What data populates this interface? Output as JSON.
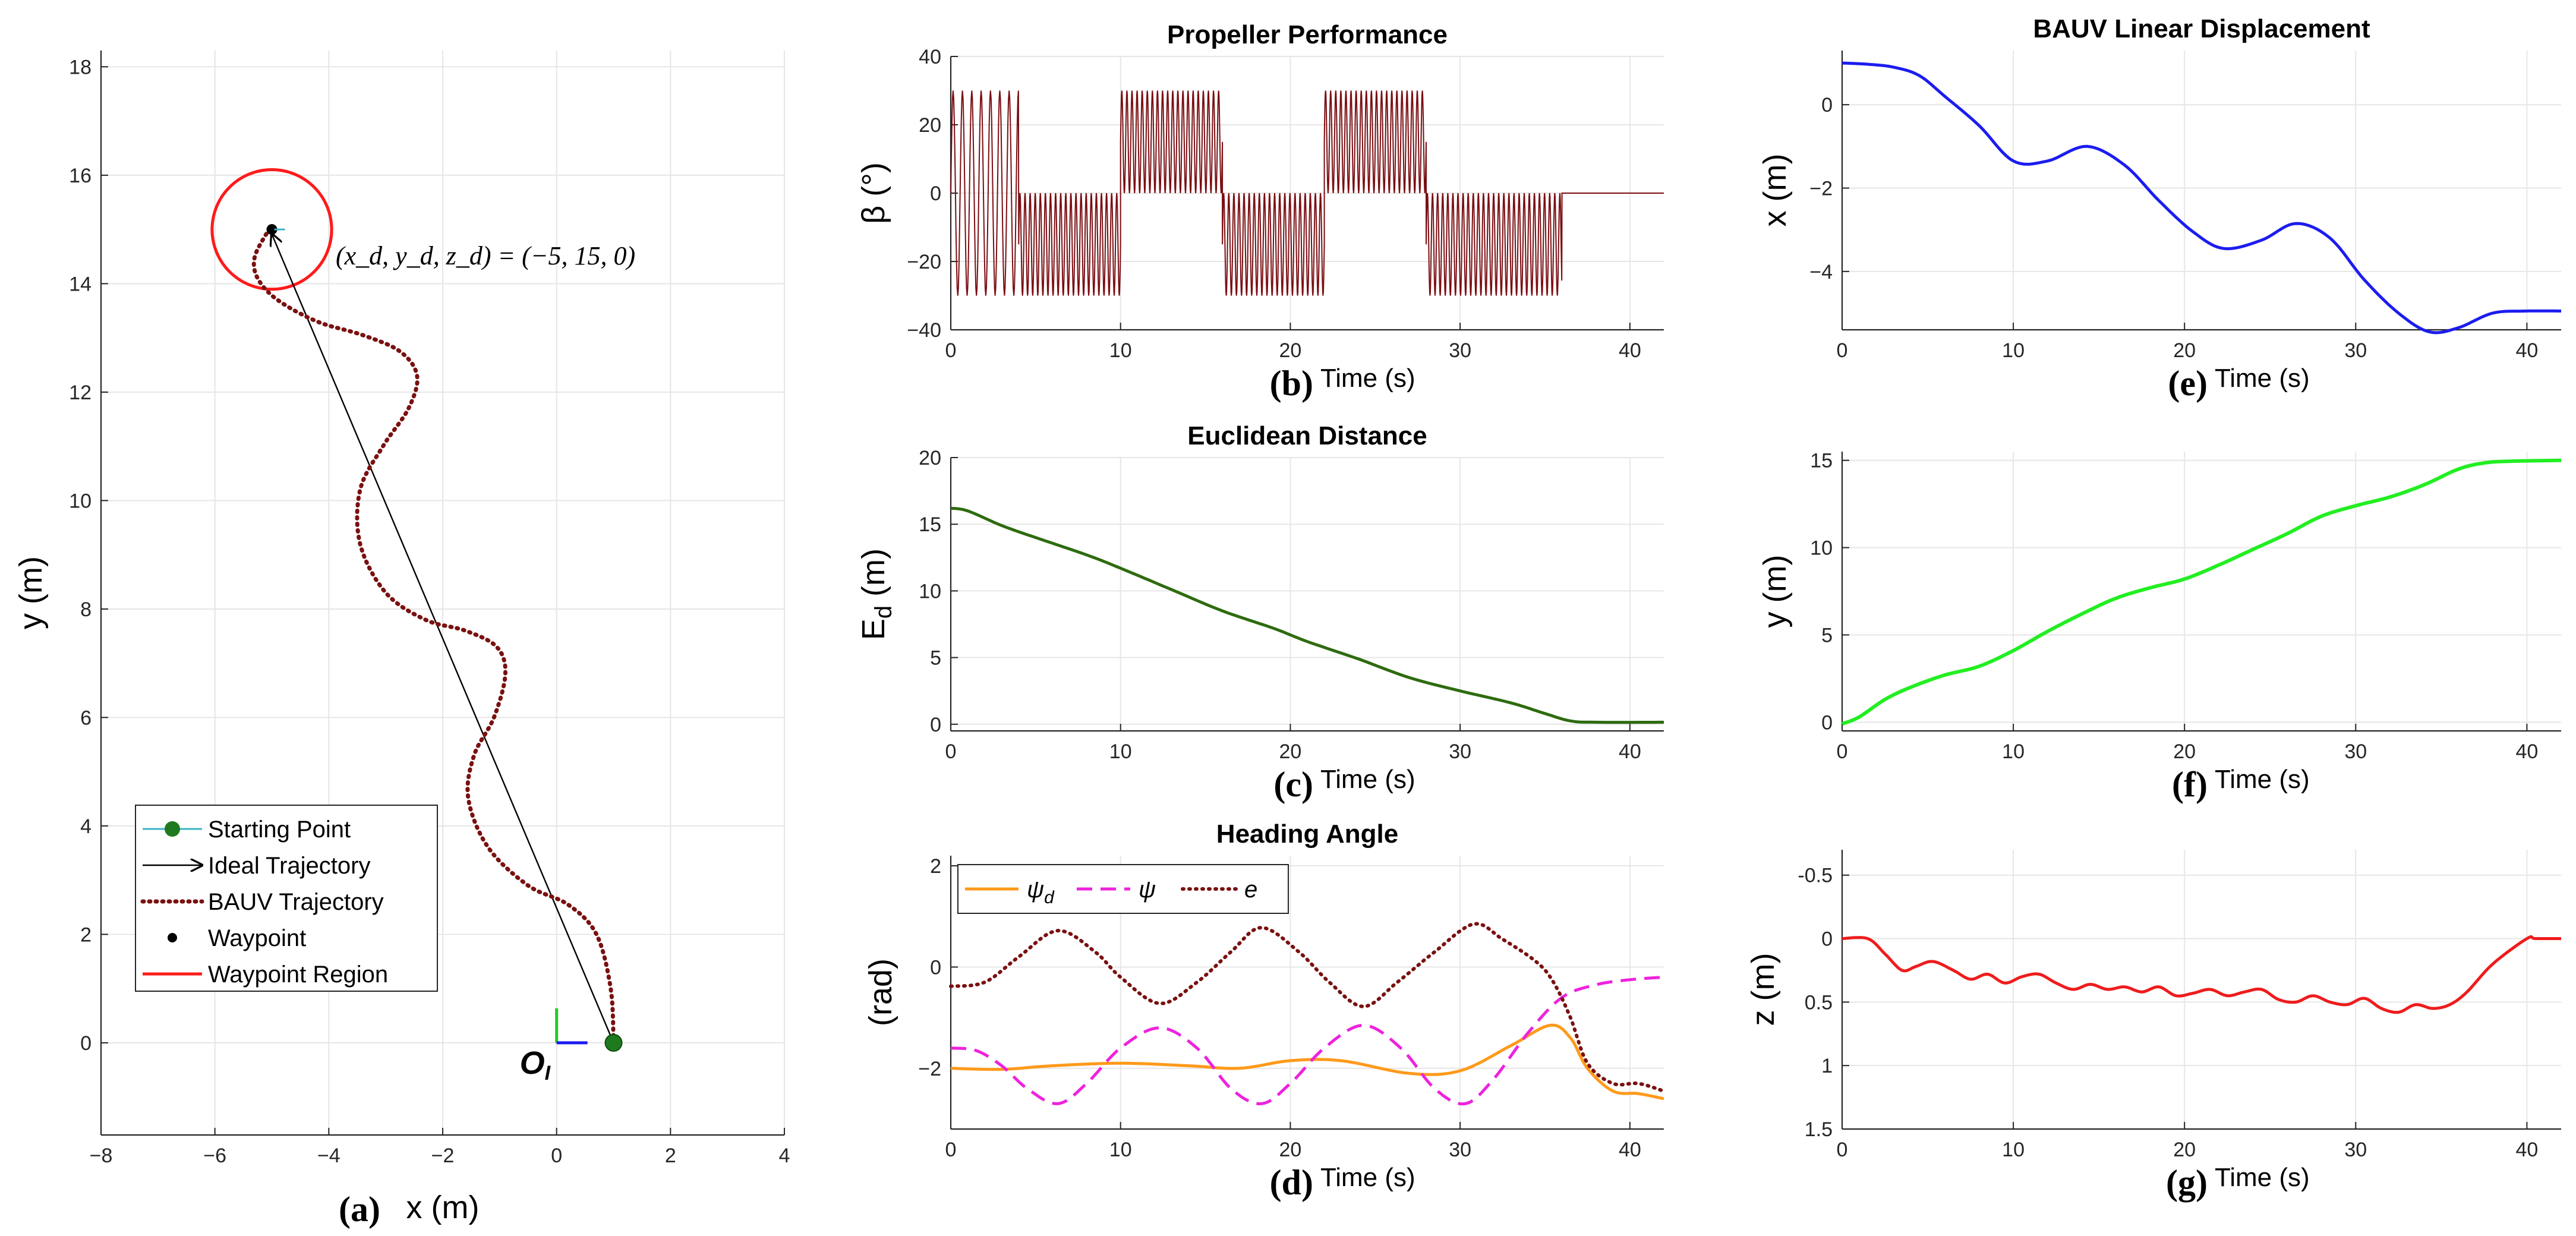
{
  "chart_data": [
    {
      "id": "a",
      "type": "line",
      "panel_label": "(a)",
      "title": "",
      "xlabel": "x (m)",
      "ylabel": "y (m)",
      "xlim": [
        -8,
        4
      ],
      "ylim": [
        -1.7,
        18.3
      ],
      "xticks": [
        -8,
        -6,
        -4,
        -2,
        0,
        2,
        4
      ],
      "yticks": [
        0,
        2,
        4,
        6,
        8,
        10,
        12,
        14,
        16,
        18
      ],
      "grid": true,
      "starting_point": [
        1,
        0
      ],
      "waypoint": [
        -5,
        15
      ],
      "waypoint_region_radius": 1.05,
      "annotation": "(x_d, y_d, z_d) = (−5, 15, 0)",
      "origin_label": "O_I",
      "ideal_trajectory": {
        "x": [
          1,
          -5
        ],
        "y": [
          0,
          15
        ]
      },
      "bauv_trajectory": {
        "x": [
          1.0,
          0.95,
          0.7,
          0.2,
          -0.5,
          -1.2,
          -1.55,
          -1.45,
          -1.1,
          -0.9,
          -1.05,
          -1.6,
          -2.3,
          -3.0,
          -3.45,
          -3.45,
          -3.05,
          -2.6,
          -2.45,
          -2.75,
          -3.4,
          -4.2,
          -4.9,
          -5.25,
          -5.3,
          -5.05
        ],
        "y": [
          0.0,
          1.0,
          2.0,
          2.55,
          2.9,
          3.6,
          4.5,
          5.3,
          6.0,
          6.8,
          7.3,
          7.6,
          7.8,
          8.3,
          9.2,
          10.2,
          11.0,
          11.7,
          12.3,
          12.75,
          13.05,
          13.3,
          13.7,
          14.1,
          14.5,
          15.0
        ]
      },
      "legend": {
        "position": "lower-left",
        "entries": [
          "Starting Point",
          "Ideal Trajectory",
          "BAUV Trajectory",
          "Waypoint",
          "Waypoint Region"
        ]
      }
    },
    {
      "id": "b",
      "type": "line",
      "panel_label": "(b)",
      "title": "Propeller Performance",
      "xlabel": "Time (s)",
      "ylabel": "β (°)",
      "xlim": [
        0,
        42
      ],
      "ylim": [
        -40,
        40
      ],
      "xticks": [
        0,
        10,
        20,
        30,
        40
      ],
      "yticks": [
        -40,
        -20,
        0,
        20,
        40
      ],
      "grid": true,
      "series": [
        {
          "name": "β",
          "description": "fast oscillation with amplitude 30° between centre offsets",
          "segments": [
            {
              "t0": 0,
              "t1": 4,
              "center": 0,
              "amplitude": 30,
              "period": 0.55
            },
            {
              "t0": 4,
              "t1": 10,
              "center": -15,
              "amplitude": 15,
              "period": 0.3
            },
            {
              "t0": 10,
              "t1": 16,
              "center": 15,
              "amplitude": 15,
              "period": 0.3
            },
            {
              "t0": 16,
              "t1": 22,
              "center": -15,
              "amplitude": 15,
              "period": 0.3
            },
            {
              "t0": 22,
              "t1": 28,
              "center": 15,
              "amplitude": 15,
              "period": 0.3
            },
            {
              "t0": 28,
              "t1": 36,
              "center": -15,
              "amplitude": 15,
              "period": 0.3
            },
            {
              "t0": 36,
              "t1": 42,
              "center": 0,
              "amplitude": 0,
              "period": 1
            }
          ]
        }
      ]
    },
    {
      "id": "c",
      "type": "line",
      "panel_label": "(c)",
      "title": "Euclidean Distance",
      "xlabel": "Time (s)",
      "ylabel": "E_d (m)",
      "xlim": [
        0,
        42
      ],
      "ylim": [
        -0.5,
        20
      ],
      "xticks": [
        0,
        10,
        20,
        30,
        40
      ],
      "yticks": [
        0,
        5,
        10,
        15,
        20
      ],
      "grid": true,
      "series": [
        {
          "name": "E_d",
          "t": [
            0,
            1,
            3,
            5,
            8,
            10,
            13,
            16,
            19,
            21,
            24,
            27,
            30,
            33,
            35,
            36.5,
            38,
            42
          ],
          "values": [
            16.2,
            16.0,
            14.9,
            14.0,
            12.7,
            11.7,
            10.1,
            8.5,
            7.2,
            6.2,
            4.9,
            3.5,
            2.5,
            1.6,
            0.8,
            0.25,
            0.15,
            0.15
          ]
        }
      ]
    },
    {
      "id": "d",
      "type": "line",
      "panel_label": "(d)",
      "title": "Heading Angle",
      "xlabel": "Time (s)",
      "ylabel": "(rad)",
      "xlim": [
        0,
        42
      ],
      "ylim": [
        -3.2,
        2.2
      ],
      "xticks": [
        0,
        10,
        20,
        30,
        40
      ],
      "yticks": [
        -2,
        0,
        2
      ],
      "grid": true,
      "legend": {
        "position": "top-left",
        "entries": [
          "ψ_d",
          "ψ",
          "e"
        ]
      },
      "series": [
        {
          "name": "ψ_d",
          "t": [
            0,
            3,
            6,
            10,
            14,
            17,
            20,
            23,
            27,
            30,
            33,
            35.3,
            36.5,
            37.5,
            39,
            40.5,
            42
          ],
          "values": [
            -2.0,
            -2.02,
            -1.95,
            -1.9,
            -1.95,
            -2.0,
            -1.85,
            -1.85,
            -2.1,
            -2.05,
            -1.55,
            -1.15,
            -1.4,
            -2.0,
            -2.45,
            -2.5,
            -2.6
          ]
        },
        {
          "name": "ψ",
          "t": [
            0,
            1.5,
            3,
            4.5,
            6.3,
            8,
            10,
            12.3,
            14.5,
            16.5,
            18.3,
            20,
            22,
            24.3,
            26.5,
            28.5,
            30.3,
            32,
            34,
            36,
            38,
            40,
            42
          ],
          "values": [
            -1.6,
            -1.65,
            -1.95,
            -2.4,
            -2.7,
            -2.3,
            -1.6,
            -1.2,
            -1.6,
            -2.4,
            -2.7,
            -2.3,
            -1.6,
            -1.15,
            -1.6,
            -2.4,
            -2.7,
            -2.2,
            -1.3,
            -0.6,
            -0.35,
            -0.25,
            -0.2
          ]
        },
        {
          "name": "e",
          "t": [
            0,
            2,
            4,
            6.3,
            8.5,
            10,
            12.3,
            14.5,
            16.5,
            18.3,
            20.5,
            22.3,
            24.3,
            26.3,
            28.5,
            30.8,
            32.5,
            34.5,
            35.5,
            36.5,
            37.5,
            39,
            40.5,
            42
          ],
          "values": [
            -0.38,
            -0.3,
            0.2,
            0.72,
            0.3,
            -0.2,
            -0.72,
            -0.3,
            0.3,
            0.78,
            0.3,
            -0.3,
            -0.78,
            -0.3,
            0.3,
            0.85,
            0.55,
            0.1,
            -0.3,
            -1.0,
            -1.9,
            -2.3,
            -2.3,
            -2.45
          ]
        }
      ]
    },
    {
      "id": "e",
      "type": "line",
      "panel_label": "(e)",
      "title": "BAUV Linear Displacement",
      "xlabel": "Time (s)",
      "ylabel": "x (m)",
      "xlim": [
        0,
        42
      ],
      "ylim": [
        -5.4,
        1.3
      ],
      "xticks": [
        0,
        10,
        20,
        30,
        40
      ],
      "yticks": [
        -4,
        -2,
        0
      ],
      "grid": true,
      "series": [
        {
          "name": "x",
          "t": [
            0,
            1.5,
            3,
            4.5,
            6,
            8,
            10,
            12,
            14.3,
            16.5,
            18.5,
            20.5,
            22.3,
            24.5,
            26.5,
            28.5,
            30.5,
            32.5,
            34.3,
            36,
            38,
            40,
            42
          ],
          "values": [
            1.0,
            0.97,
            0.9,
            0.7,
            0.2,
            -0.5,
            -1.35,
            -1.35,
            -1.0,
            -1.45,
            -2.3,
            -3.05,
            -3.45,
            -3.25,
            -2.85,
            -3.2,
            -4.2,
            -5.0,
            -5.45,
            -5.35,
            -5.0,
            -4.95,
            -4.95
          ]
        }
      ]
    },
    {
      "id": "f",
      "type": "line",
      "panel_label": "(f)",
      "title": "",
      "xlabel": "Time (s)",
      "ylabel": "y (m)",
      "xlim": [
        0,
        42
      ],
      "ylim": [
        -0.5,
        15.5
      ],
      "xticks": [
        0,
        10,
        20,
        30,
        40
      ],
      "yticks": [
        0,
        5,
        10,
        15
      ],
      "grid": true,
      "series": [
        {
          "name": "y",
          "t": [
            0,
            1,
            2.5,
            4,
            6,
            8,
            10,
            12,
            14,
            16,
            18,
            20,
            22,
            24,
            26,
            28,
            30,
            32,
            34,
            36,
            37.5,
            39,
            42
          ],
          "values": [
            -0.1,
            0.3,
            1.3,
            2.0,
            2.7,
            3.2,
            4.1,
            5.2,
            6.2,
            7.1,
            7.7,
            8.2,
            9.0,
            9.9,
            10.8,
            11.8,
            12.4,
            12.9,
            13.6,
            14.5,
            14.85,
            14.95,
            15.0
          ]
        }
      ]
    },
    {
      "id": "g",
      "type": "line",
      "panel_label": "(g)",
      "title": "",
      "xlabel": "Time (s)",
      "ylabel": "z (m)",
      "xlim": [
        0,
        42
      ],
      "ylim": [
        -0.7,
        1.5
      ],
      "y_reversed": true,
      "xticks": [
        0,
        10,
        20,
        30,
        40
      ],
      "yticks": [
        -0.5,
        0,
        0.5,
        1,
        1.5
      ],
      "yticklabels": [
        "-0.5",
        "0",
        "0.5",
        "1",
        "1.5"
      ],
      "grid": true,
      "series": [
        {
          "name": "z",
          "t": [
            0,
            1.5,
            2.5,
            3.5,
            4.3,
            5.3,
            6.5,
            7.5,
            8.5,
            9.5,
            10.5,
            11.5,
            12.5,
            13.5,
            14.5,
            15.5,
            16.5,
            17.5,
            18.5,
            19.5,
            20.5,
            21.5,
            22.5,
            23.5,
            24.5,
            25.5,
            26.5,
            27.5,
            28.5,
            29.5,
            30.5,
            31.5,
            32.5,
            33.5,
            34.5,
            35.5,
            36.5,
            38,
            40,
            40.5,
            42
          ],
          "values": [
            0.0,
            0.0,
            0.12,
            0.25,
            0.22,
            0.18,
            0.25,
            0.32,
            0.28,
            0.35,
            0.3,
            0.28,
            0.35,
            0.4,
            0.36,
            0.4,
            0.38,
            0.42,
            0.38,
            0.45,
            0.43,
            0.4,
            0.45,
            0.42,
            0.4,
            0.48,
            0.5,
            0.45,
            0.5,
            0.52,
            0.47,
            0.55,
            0.58,
            0.52,
            0.55,
            0.52,
            0.42,
            0.2,
            0.0,
            0.0,
            0.0
          ]
        }
      ]
    }
  ]
}
